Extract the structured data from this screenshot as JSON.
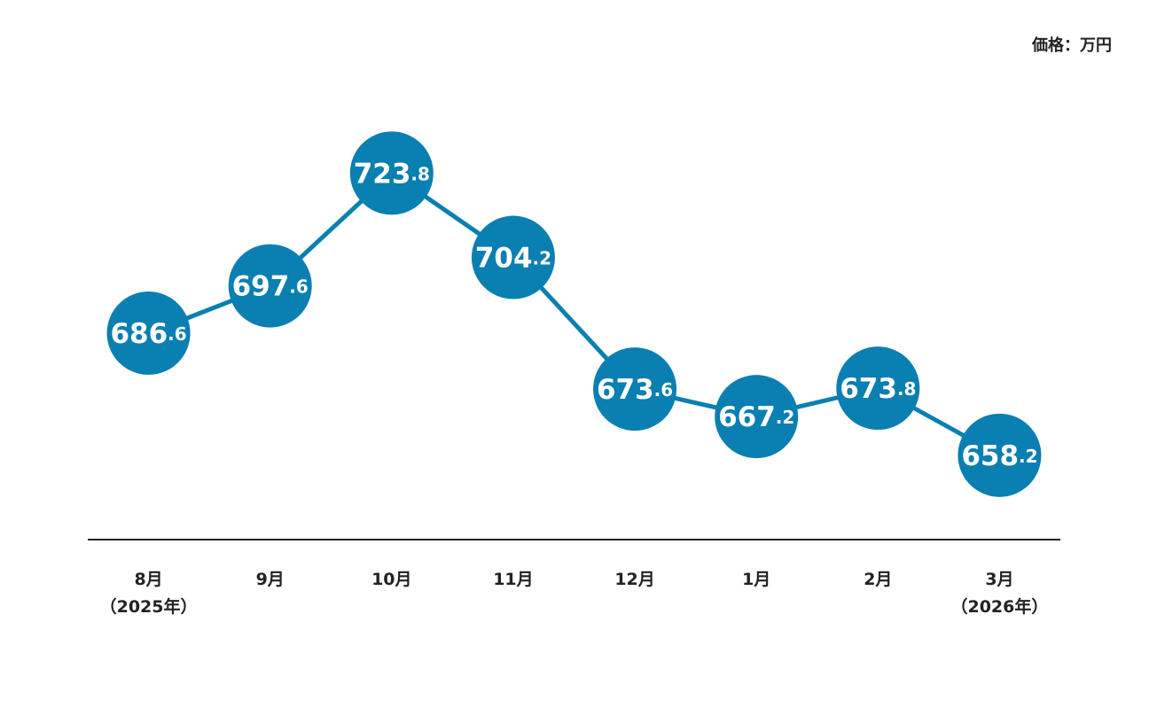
{
  "chart_data": {
    "type": "line",
    "unit_label": "価格：万円",
    "categories": [
      "8月\n（2025年）",
      "9月",
      "10月",
      "11月",
      "12月",
      "1月",
      "2月",
      "3月\n（2026年）"
    ],
    "values": [
      686.6,
      697.6,
      723.8,
      704.2,
      673.6,
      667.2,
      673.8,
      658.2
    ],
    "color": "#0a7fb1",
    "ylim": [
      638.6,
      741.6
    ]
  }
}
